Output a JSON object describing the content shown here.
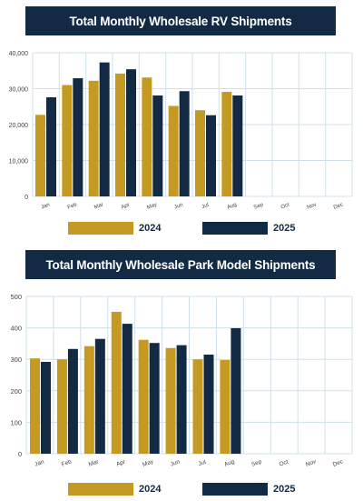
{
  "colors": {
    "series_2024": "#c49a22",
    "series_2025": "#132a44",
    "title_bg": "#132a44",
    "grid": "#cfe0e8"
  },
  "chart_data": [
    {
      "type": "bar",
      "title": "Total Monthly Wholesale RV Shipments",
      "categories": [
        "Jan",
        "Feb",
        "Mar",
        "Apr",
        "May",
        "Jun",
        "Jul",
        "Aug",
        "Sep",
        "Oct",
        "Nov",
        "Dec"
      ],
      "series": [
        {
          "name": "2024",
          "values": [
            22700,
            31000,
            32200,
            34200,
            33100,
            25200,
            24000,
            29100,
            null,
            null,
            null,
            null
          ]
        },
        {
          "name": "2025",
          "values": [
            27600,
            32900,
            37300,
            35400,
            28100,
            29300,
            22600,
            28100,
            null,
            null,
            null,
            null
          ]
        }
      ],
      "ylim": [
        0,
        40000
      ],
      "yticks": [
        0,
        10000,
        20000,
        30000,
        40000
      ],
      "ytick_labels": [
        "0",
        "10,000",
        "20,000",
        "30,000",
        "40,000"
      ],
      "grid": true,
      "legend": "bottom"
    },
    {
      "type": "bar",
      "title": "Total Monthly Wholesale Park Model Shipments",
      "categories": [
        "Jan",
        "Feb",
        "Mar",
        "Apr",
        "May",
        "Jun",
        "Jul",
        "Aug",
        "Sep",
        "Oct",
        "Nov",
        "Dec"
      ],
      "series": [
        {
          "name": "2024",
          "values": [
            303,
            300,
            342,
            451,
            362,
            336,
            300,
            298,
            null,
            null,
            null,
            null
          ]
        },
        {
          "name": "2025",
          "values": [
            292,
            333,
            365,
            413,
            352,
            345,
            315,
            399,
            null,
            null,
            null,
            null
          ]
        }
      ],
      "ylim": [
        0,
        500
      ],
      "yticks": [
        0,
        100,
        200,
        300,
        400,
        500
      ],
      "ytick_labels": [
        "0",
        "100",
        "200",
        "300",
        "400",
        "500"
      ],
      "grid": true,
      "legend": "bottom"
    }
  ]
}
